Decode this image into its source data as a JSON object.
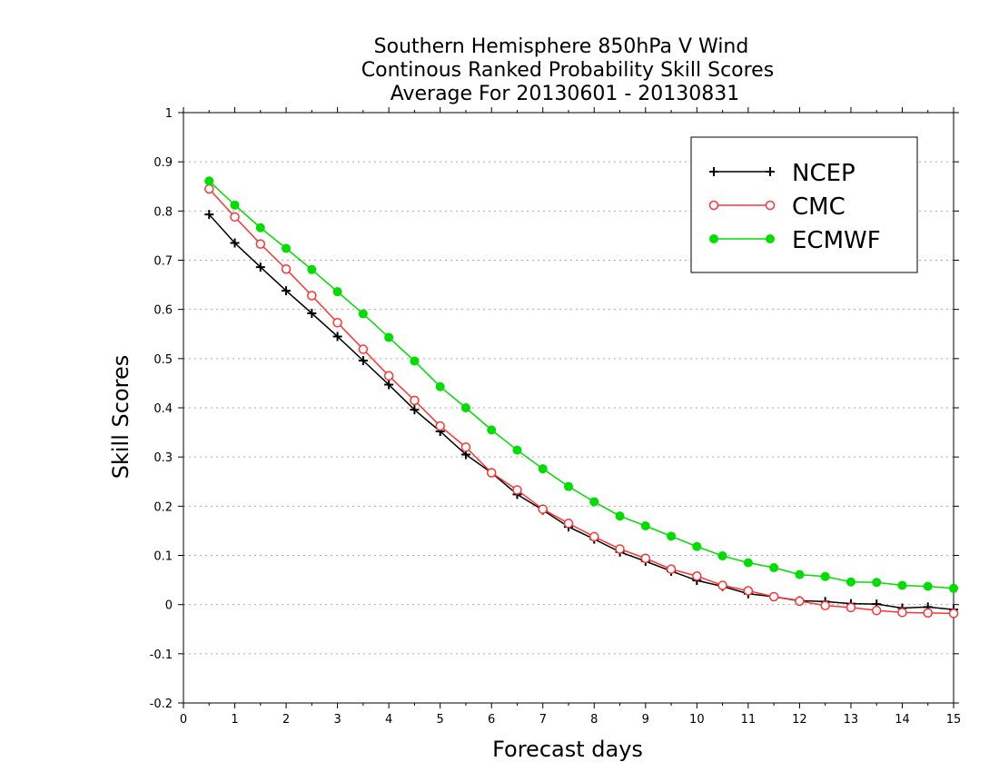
{
  "chart_data": {
    "type": "line",
    "title_lines": [
      "Southern Hemisphere 850hPa V Wind",
      "Continous Ranked Probability Skill Scores",
      "Average For 20130601 - 20130831"
    ],
    "xlabel": "Forecast days",
    "ylabel": "Skill Scores",
    "xlim": [
      0,
      15
    ],
    "ylim": [
      -0.2,
      1
    ],
    "x_ticks": [
      0,
      1,
      2,
      3,
      4,
      5,
      6,
      7,
      8,
      9,
      10,
      11,
      12,
      13,
      14,
      15
    ],
    "y_ticks": [
      -0.2,
      -0.1,
      0,
      0.1,
      0.2,
      0.3,
      0.4,
      0.5,
      0.6,
      0.7,
      0.8,
      0.9,
      1
    ],
    "y_tick_labels": [
      "-0.2",
      "-0.1",
      "0",
      "0.1",
      "0.2",
      "0.3",
      "0.4",
      "0.5",
      "0.6",
      "0.7",
      "0.8",
      "0.9",
      "1"
    ],
    "grid": "horizontal dotted",
    "legend_position": "top-right",
    "x": [
      0.5,
      1,
      1.5,
      2,
      2.5,
      3,
      3.5,
      4,
      4.5,
      5,
      5.5,
      6,
      6.5,
      7,
      7.5,
      8,
      8.5,
      9,
      9.5,
      10,
      10.5,
      11,
      11.5,
      12,
      12.5,
      13,
      13.5,
      14,
      14.5,
      15
    ],
    "series": [
      {
        "name": "NCEP",
        "color": "#000000",
        "marker": "plus",
        "values": [
          0.793,
          0.735,
          0.686,
          0.638,
          0.592,
          0.545,
          0.496,
          0.447,
          0.396,
          0.352,
          0.305,
          0.268,
          0.224,
          0.192,
          0.158,
          0.133,
          0.107,
          0.088,
          0.068,
          0.049,
          0.037,
          0.022,
          0.016,
          0.008,
          0.006,
          0.002,
          0.001,
          -0.007,
          -0.005,
          -0.01
        ]
      },
      {
        "name": "CMC",
        "color": "#ff3333",
        "marker": "open-circle",
        "values": [
          0.845,
          0.788,
          0.733,
          0.682,
          0.628,
          0.573,
          0.519,
          0.465,
          0.415,
          0.363,
          0.32,
          0.268,
          0.233,
          0.194,
          0.165,
          0.138,
          0.113,
          0.094,
          0.072,
          0.058,
          0.039,
          0.028,
          0.016,
          0.007,
          -0.002,
          -0.006,
          -0.012,
          -0.016,
          -0.017,
          -0.018
        ]
      },
      {
        "name": "ECMWF",
        "color": "#00dd00",
        "marker": "filled-circle",
        "values": [
          0.861,
          0.812,
          0.766,
          0.724,
          0.681,
          0.636,
          0.591,
          0.543,
          0.495,
          0.443,
          0.4,
          0.355,
          0.314,
          0.276,
          0.24,
          0.209,
          0.18,
          0.16,
          0.139,
          0.118,
          0.099,
          0.085,
          0.075,
          0.061,
          0.057,
          0.046,
          0.045,
          0.039,
          0.037,
          0.033
        ]
      }
    ]
  }
}
